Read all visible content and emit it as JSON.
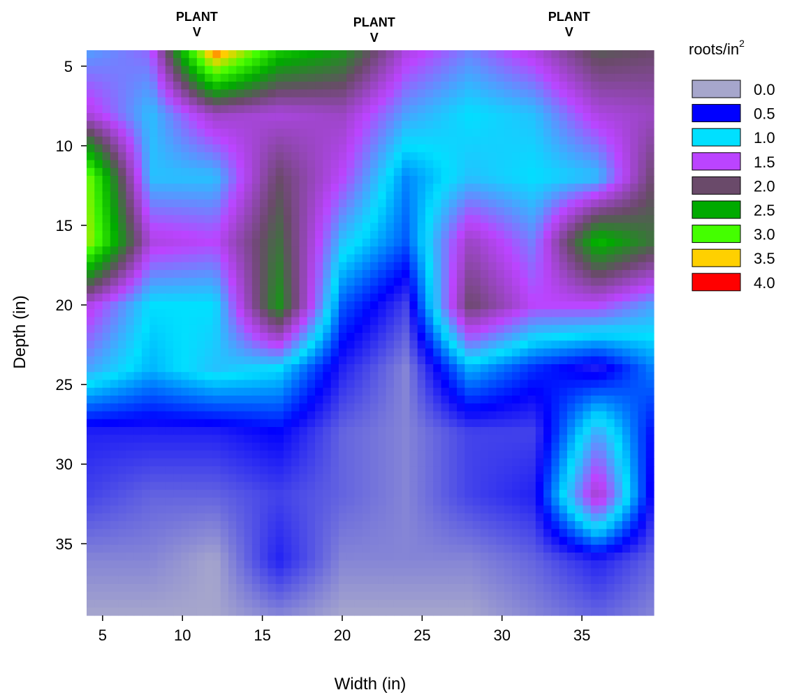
{
  "chart_data": {
    "type": "heatmap",
    "title": "",
    "xlabel": "Width (in)",
    "ylabel": "Depth (in)",
    "xlim": [
      4,
      39.5
    ],
    "ylim": [
      4,
      39.5
    ],
    "y_inverted": true,
    "x_ticks": [
      5,
      10,
      15,
      20,
      25,
      30,
      35
    ],
    "y_ticks": [
      5,
      10,
      15,
      20,
      25,
      30,
      35
    ],
    "colorbar_title": "roots/in",
    "colorbar_title_superscript": "2",
    "legend_position": "right",
    "legend": [
      {
        "label": "0.0",
        "value": 0.0,
        "color": "#a6a6cc"
      },
      {
        "label": "0.5",
        "value": 0.5,
        "color": "#0000ff"
      },
      {
        "label": "1.0",
        "value": 1.0,
        "color": "#00e0ff"
      },
      {
        "label": "1.5",
        "value": 1.5,
        "color": "#bb44ff"
      },
      {
        "label": "2.0",
        "value": 2.0,
        "color": "#6a4a6a"
      },
      {
        "label": "2.5",
        "value": 2.5,
        "color": "#00aa00"
      },
      {
        "label": "3.0",
        "value": 3.0,
        "color": "#44ff00"
      },
      {
        "label": "3.5",
        "value": 3.5,
        "color": "#ffd000"
      },
      {
        "label": "4.0",
        "value": 4.0,
        "color": "#ff0000"
      }
    ],
    "annotations": [
      {
        "line1": "PLANT",
        "line2": "V",
        "x": 10.9
      },
      {
        "line1": "PLANT",
        "line2": "V",
        "x": 22.0
      },
      {
        "line1": "PLANT",
        "line2": "V",
        "x": 34.2
      }
    ],
    "x": [
      4,
      8,
      12,
      16,
      20,
      24,
      28,
      32,
      36,
      39.5
    ],
    "y": [
      4,
      8,
      12,
      16,
      20,
      24,
      28,
      32,
      36,
      39.5
    ],
    "z": [
      [
        1.2,
        1.4,
        3.8,
        2.7,
        2.4,
        1.6,
        1.3,
        1.6,
        2.1,
        2.0
      ],
      [
        1.6,
        1.1,
        1.7,
        1.6,
        1.7,
        1.2,
        1.0,
        1.1,
        1.6,
        1.7
      ],
      [
        3.2,
        1.1,
        1.1,
        2.0,
        1.5,
        0.8,
        1.1,
        1.0,
        1.1,
        2.0
      ],
      [
        3.3,
        1.6,
        1.5,
        2.2,
        1.1,
        0.7,
        1.7,
        1.3,
        2.6,
        2.2
      ],
      [
        1.6,
        1.0,
        1.0,
        2.4,
        0.7,
        0.3,
        2.0,
        1.5,
        1.5,
        1.2
      ],
      [
        1.2,
        0.9,
        1.1,
        1.0,
        0.4,
        0.1,
        0.9,
        0.6,
        0.4,
        0.8
      ],
      [
        0.4,
        0.4,
        0.4,
        0.5,
        0.2,
        0.1,
        0.3,
        0.3,
        1.2,
        0.5
      ],
      [
        0.3,
        0.2,
        0.2,
        0.3,
        0.2,
        0.1,
        0.3,
        0.4,
        1.7,
        0.4
      ],
      [
        0.1,
        0.1,
        0.0,
        0.4,
        0.1,
        0.1,
        0.1,
        0.2,
        0.4,
        0.2
      ],
      [
        0.0,
        0.0,
        0.0,
        0.1,
        0.0,
        0.0,
        0.0,
        0.1,
        0.2,
        0.1
      ]
    ]
  }
}
